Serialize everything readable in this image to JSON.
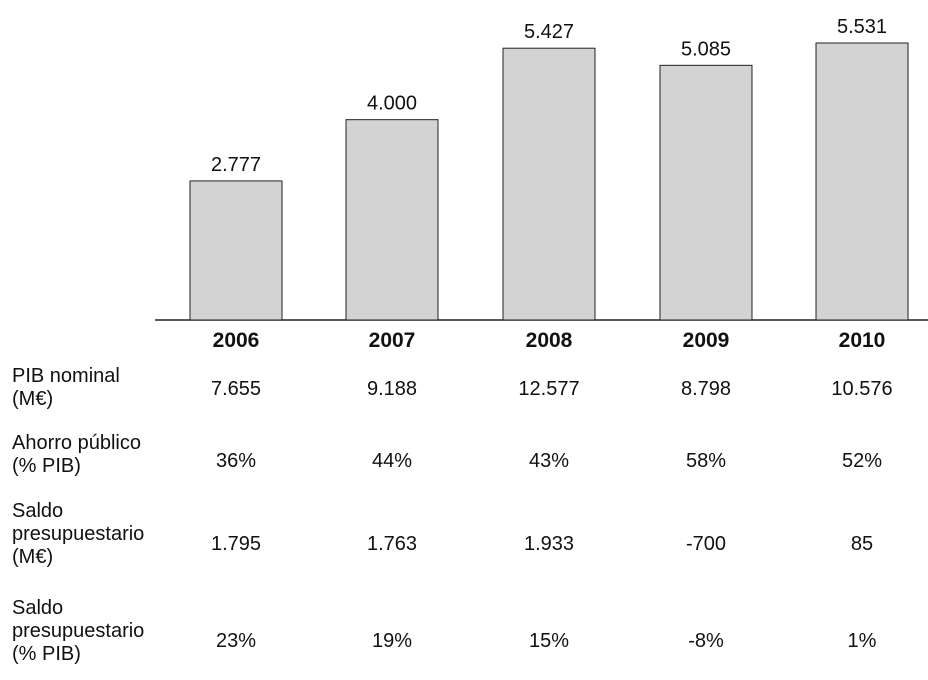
{
  "chart_data": {
    "type": "bar",
    "categories": [
      "2006",
      "2007",
      "2008",
      "2009",
      "2010"
    ],
    "values": [
      2777,
      4000,
      5427,
      5085,
      5531
    ],
    "value_labels": [
      "2.777",
      "4.000",
      "5.427",
      "5.085",
      "5.531"
    ],
    "ylim": [
      0,
      5531
    ],
    "bar_color": "#d3d3d3",
    "grid": false,
    "legend": "none"
  },
  "table": {
    "rows": [
      {
        "label": "PIB nominal\n(M€)",
        "values": [
          "7.655",
          "9.188",
          "12.577",
          "8.798",
          "10.576"
        ]
      },
      {
        "label": "Ahorro público\n(% PIB)",
        "values": [
          "36%",
          "44%",
          "43%",
          "58%",
          "52%"
        ]
      },
      {
        "label": "Saldo\npresupuestario\n(M€)",
        "values": [
          "1.795",
          "1.763",
          "1.933",
          "-700",
          "85"
        ]
      },
      {
        "label": "Saldo\npresupuestario\n(% PIB)",
        "values": [
          "23%",
          "19%",
          "15%",
          "-8%",
          "1%"
        ]
      }
    ]
  }
}
